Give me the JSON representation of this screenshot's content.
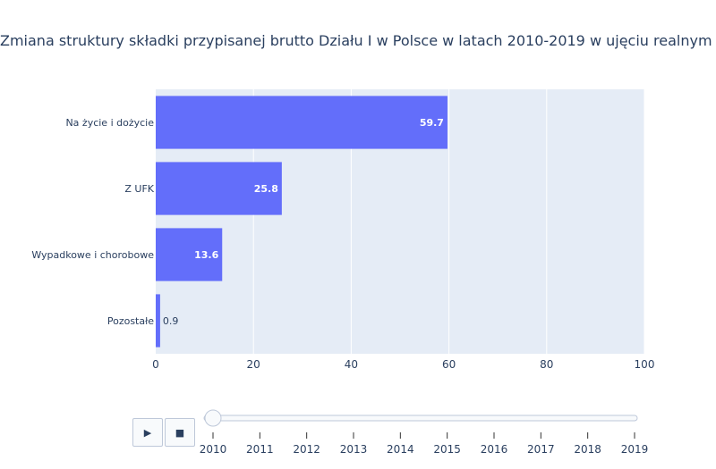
{
  "chart_data": {
    "type": "bar",
    "orientation": "horizontal",
    "title": "Zmiana struktury składki przypisanej brutto Działu I w Polsce w latach 2010-2019 w ujęciu realnym (%)",
    "categories": [
      "Na życie i dożycie",
      "Z UFK",
      "Wypadkowe i chorobowe",
      "Pozostałe"
    ],
    "values": [
      59.7,
      25.8,
      13.6,
      0.9
    ],
    "data_labels": [
      "59.7",
      "25.8",
      "13.6",
      "0.9"
    ],
    "xlim": [
      0,
      100
    ],
    "x_ticks": [
      0,
      20,
      40,
      60,
      80,
      100
    ],
    "grid": true,
    "bar_color": "#636efa",
    "background_color": "#e5ecf6"
  },
  "slider": {
    "years": [
      "2010",
      "2011",
      "2012",
      "2013",
      "2014",
      "2015",
      "2016",
      "2017",
      "2018",
      "2019"
    ],
    "current_year": "2010"
  },
  "controls": {
    "play_icon": "▶",
    "stop_icon": "■"
  }
}
